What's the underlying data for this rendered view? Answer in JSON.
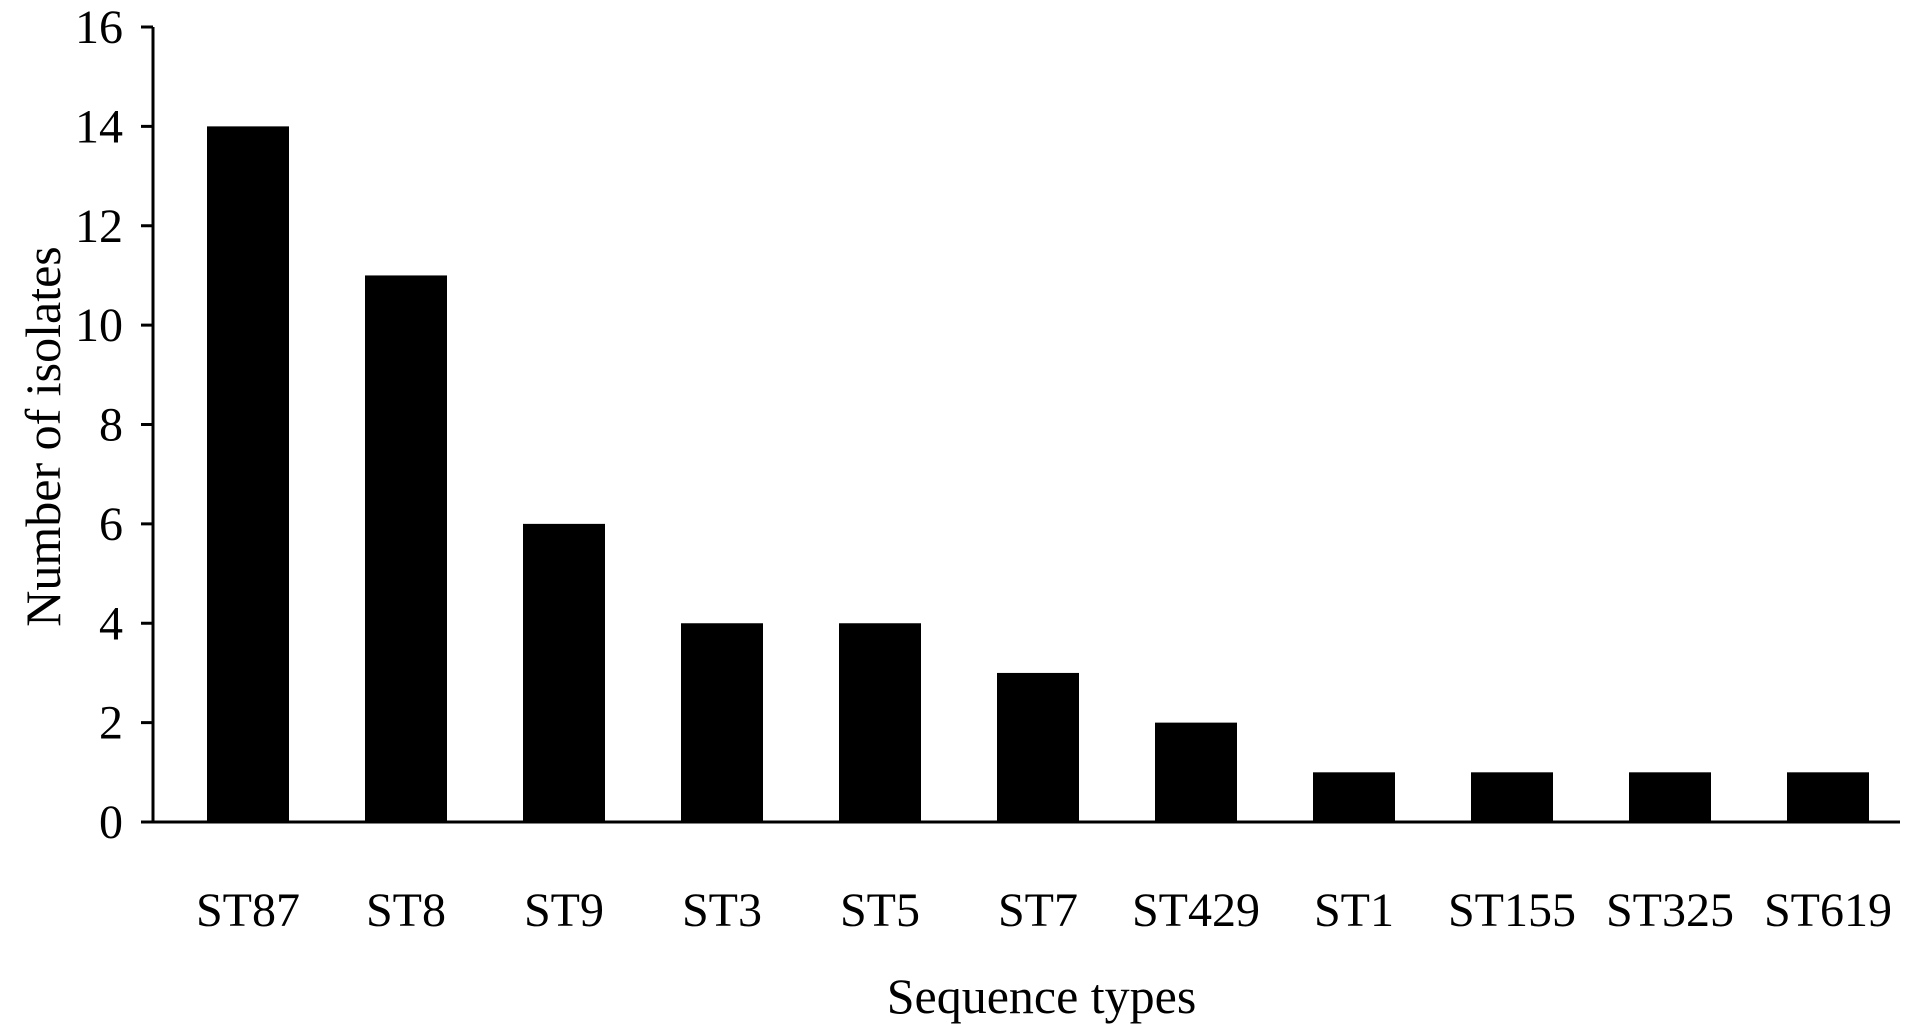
{
  "chart_data": {
    "type": "bar",
    "title": "",
    "xlabel": "Sequence types",
    "ylabel": "Number of isolates",
    "categories": [
      "ST87",
      "ST8",
      "ST9",
      "ST3",
      "ST5",
      "ST7",
      "ST429",
      "ST1",
      "ST155",
      "ST325",
      "ST619"
    ],
    "values": [
      14,
      11,
      6,
      4,
      4,
      3,
      2,
      1,
      1,
      1,
      1
    ],
    "ylim": [
      0,
      16
    ],
    "yticks": [
      0,
      2,
      4,
      6,
      8,
      10,
      12,
      14,
      16
    ],
    "grid": false,
    "legend": "none",
    "bar_color": "#000000",
    "axis_color": "#000000"
  }
}
